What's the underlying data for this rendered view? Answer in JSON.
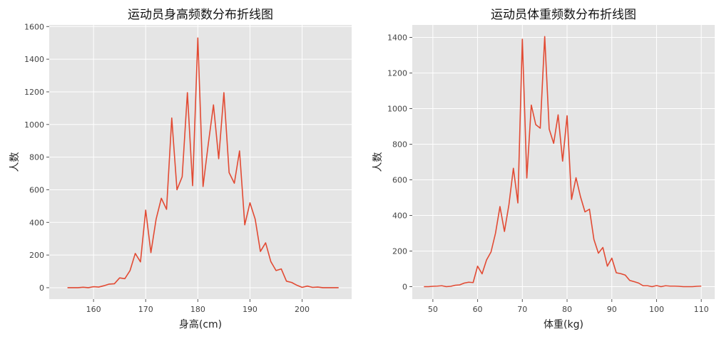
{
  "chart_data": [
    {
      "type": "line",
      "title": "运动员身高频数分布折线图",
      "xlabel": "身高(cm)",
      "ylabel": "人数",
      "xlim": [
        151.5,
        209.5
      ],
      "ylim": [
        -70,
        1610
      ],
      "xticks": [
        160,
        170,
        180,
        190,
        200
      ],
      "yticks": [
        0,
        200,
        400,
        600,
        800,
        1000,
        1200,
        1400,
        1600
      ],
      "grid": true,
      "line_color": "#E24A33",
      "background": "#E5E5E5",
      "series": [
        {
          "x": [
            155,
            156,
            157,
            158,
            159,
            160,
            161,
            162,
            163,
            164,
            165,
            166,
            167,
            168,
            169,
            170,
            171,
            172,
            173,
            174,
            175,
            176,
            177,
            178,
            179,
            180,
            181,
            182,
            183,
            184,
            185,
            186,
            187,
            188,
            189,
            190,
            191,
            192,
            193,
            194,
            195,
            196,
            197,
            198,
            199,
            200,
            201,
            202,
            203,
            204,
            205,
            206,
            207
          ],
          "values": [
            0,
            0,
            0,
            3,
            0,
            6,
            4,
            12,
            22,
            24,
            60,
            55,
            105,
            210,
            158,
            475,
            215,
            420,
            548,
            480,
            1040,
            600,
            680,
            1195,
            625,
            1530,
            620,
            880,
            1120,
            790,
            1195,
            705,
            640,
            838,
            385,
            520,
            420,
            222,
            275,
            160,
            105,
            115,
            40,
            32,
            15,
            2,
            10,
            2,
            4,
            0,
            0,
            0,
            0
          ]
        }
      ]
    },
    {
      "type": "line",
      "title": "运动员体重频数分布折线图",
      "xlabel": "体重(kg)",
      "ylabel": "人数",
      "xlim": [
        45.4,
        113.0
      ],
      "ylim": [
        -70,
        1470
      ],
      "xticks": [
        50,
        60,
        70,
        80,
        90,
        100,
        110
      ],
      "yticks": [
        0,
        200,
        400,
        600,
        800,
        1000,
        1200,
        1400
      ],
      "grid": true,
      "line_color": "#E24A33",
      "background": "#E5E5E5",
      "series": [
        {
          "x": [
            48,
            49,
            50,
            51,
            52,
            53,
            54,
            55,
            56,
            57,
            58,
            59,
            60,
            61,
            62,
            63,
            64,
            65,
            66,
            67,
            68,
            69,
            70,
            71,
            72,
            73,
            74,
            75,
            76,
            77,
            78,
            79,
            80,
            81,
            82,
            83,
            84,
            85,
            86,
            87,
            88,
            89,
            90,
            91,
            92,
            93,
            94,
            95,
            96,
            97,
            98,
            99,
            100,
            101,
            102,
            103,
            104,
            105,
            106,
            107,
            108,
            109,
            110
          ],
          "values": [
            0,
            0,
            2,
            3,
            5,
            0,
            2,
            8,
            10,
            20,
            25,
            23,
            115,
            72,
            150,
            195,
            300,
            450,
            310,
            460,
            665,
            470,
            1390,
            610,
            1020,
            910,
            890,
            1405,
            885,
            805,
            965,
            705,
            960,
            490,
            612,
            505,
            420,
            435,
            265,
            188,
            220,
            115,
            160,
            78,
            73,
            65,
            35,
            28,
            20,
            5,
            5,
            0,
            6,
            0,
            5,
            3,
            3,
            2,
            0,
            0,
            0,
            2,
            3
          ]
        }
      ]
    }
  ]
}
